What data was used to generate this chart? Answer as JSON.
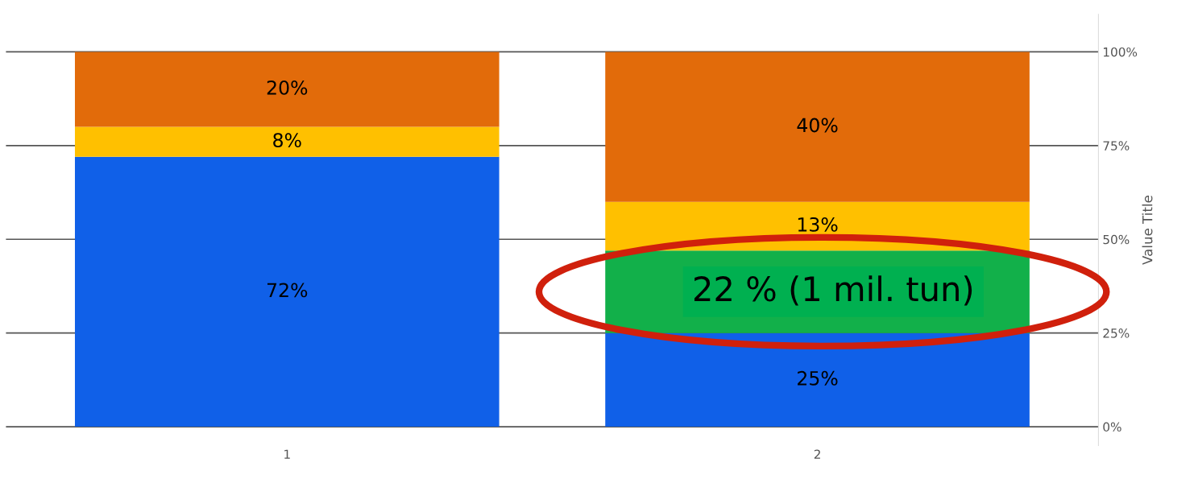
{
  "chart_data": {
    "type": "bar",
    "stacked": true,
    "categories": [
      "1",
      "2"
    ],
    "series": [
      {
        "color": "#1060e8",
        "values": [
          72,
          25
        ],
        "value_labels": [
          "72%",
          "25%"
        ]
      },
      {
        "color": "#12b04a",
        "values": [
          0,
          22
        ],
        "value_labels": [
          null,
          "22 % (1 mil. tun)"
        ]
      },
      {
        "color": "#ffc000",
        "values": [
          8,
          13
        ],
        "value_labels": [
          "8%",
          "13%"
        ]
      },
      {
        "color": "#e26b0a",
        "values": [
          20,
          40
        ],
        "value_labels": [
          "20%",
          "40%"
        ]
      }
    ],
    "ylabel": "Value Title",
    "ylim": [
      -5,
      110
    ],
    "yticks": [
      {
        "value": 0,
        "label": "0%"
      },
      {
        "value": 25,
        "label": "25%"
      },
      {
        "value": 50,
        "label": "50%"
      },
      {
        "value": 75,
        "label": "75%"
      },
      {
        "value": 100,
        "label": "100%"
      }
    ],
    "grid": "y",
    "legend": false
  }
}
